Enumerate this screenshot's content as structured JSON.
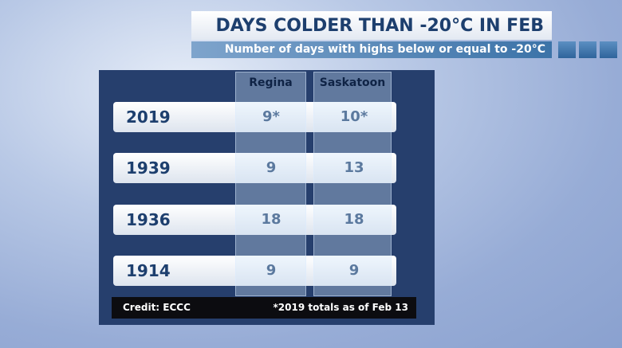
{
  "header": {
    "title": "DAYS COLDER THAN -20°C IN FEB",
    "subtitle": "Number of days with highs below or equal to -20°C"
  },
  "table": {
    "columns": [
      "Regina",
      "Saskatoon"
    ],
    "rows": [
      [
        "2019",
        "9*",
        "10*"
      ],
      [
        "1939",
        "9",
        "13"
      ],
      [
        "1936",
        "18",
        "18"
      ],
      [
        "1914",
        "9",
        "9"
      ]
    ]
  },
  "footer": {
    "credit": "Credit: ECCC",
    "note": "*2019 totals as of Feb 13"
  }
}
